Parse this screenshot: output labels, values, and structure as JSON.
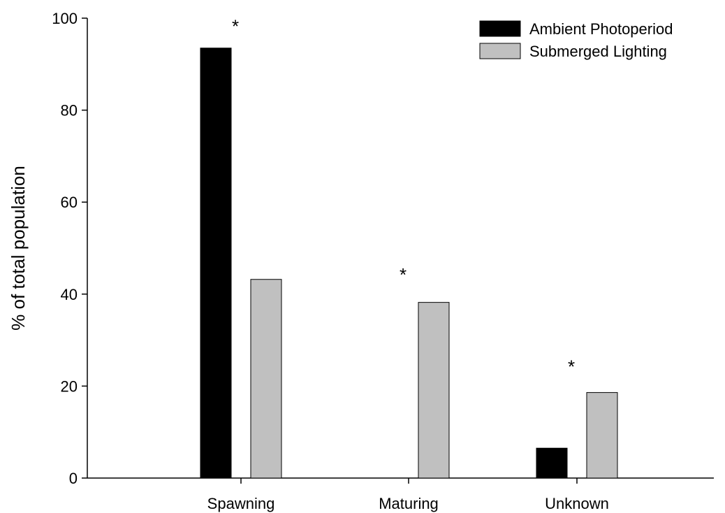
{
  "chart_data": {
    "type": "bar",
    "title": "",
    "xlabel": "",
    "ylabel": "% of total population",
    "ylim": [
      0,
      100
    ],
    "yticks": [
      0,
      20,
      40,
      60,
      80,
      100
    ],
    "ytick_labels": [
      "0",
      "20",
      "40",
      "60",
      "80",
      "100"
    ],
    "categories": [
      "Spawning",
      "Maturing",
      "Unknown"
    ],
    "series": [
      {
        "name": "Ambient Photoperiod",
        "color": "#000000",
        "values": [
          93.5,
          0,
          6.5
        ]
      },
      {
        "name": "Submerged Lighting",
        "color": "#c0c0c0",
        "values": [
          43.2,
          38.2,
          18.6
        ]
      }
    ],
    "annotations": [
      {
        "text": "*",
        "category": "Spawning",
        "y": 99
      },
      {
        "text": "*",
        "category": "Maturing",
        "y": 45
      },
      {
        "text": "*",
        "category": "Unknown",
        "y": 25
      }
    ],
    "legend_position": "top-right",
    "grid": false
  }
}
